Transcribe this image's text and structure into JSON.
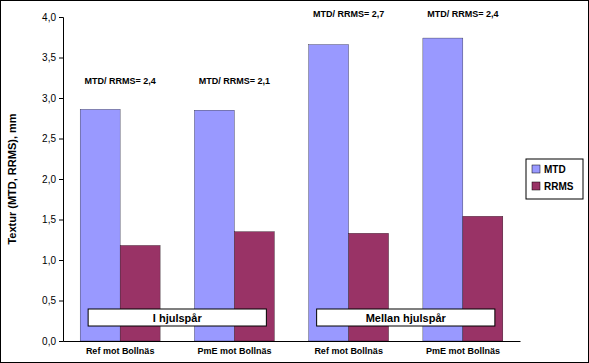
{
  "chart_data": {
    "type": "bar",
    "y_label": "Textur (MTD, RRMS), mm",
    "categories": [
      "Ref mot Bollnäs",
      "PmE mot Bollnäs",
      "Ref mot Bollnäs",
      "PmE mot Bollnäs"
    ],
    "series": [
      {
        "name": "MTD",
        "color": "#9999ff",
        "values": [
          2.86,
          2.85,
          3.66,
          3.74
        ]
      },
      {
        "name": "RRMS",
        "color": "#993366",
        "values": [
          1.18,
          1.35,
          1.33,
          1.54
        ]
      }
    ],
    "annotations": [
      "MTD/ RRMS= 2,4",
      "MTD/ RRMS= 2,1",
      "MTD/ RRMS= 2,7",
      "MTD/ RRMS= 2,4"
    ],
    "group_labels": [
      "I hjulspår",
      "Mellan hjulspår"
    ],
    "ylim": [
      0,
      4
    ],
    "yticks": [
      {
        "value": 0,
        "label": "0,0"
      },
      {
        "value": 0.5,
        "label": "0,5"
      },
      {
        "value": 1,
        "label": "1,0"
      },
      {
        "value": 1.5,
        "label": "1,5"
      },
      {
        "value": 2,
        "label": "2,0"
      },
      {
        "value": 2.5,
        "label": "2,5"
      },
      {
        "value": 3,
        "label": "3,0"
      },
      {
        "value": 3.5,
        "label": "3,5"
      },
      {
        "value": 4,
        "label": "4,0"
      }
    ],
    "grid": false,
    "legend": "right"
  }
}
